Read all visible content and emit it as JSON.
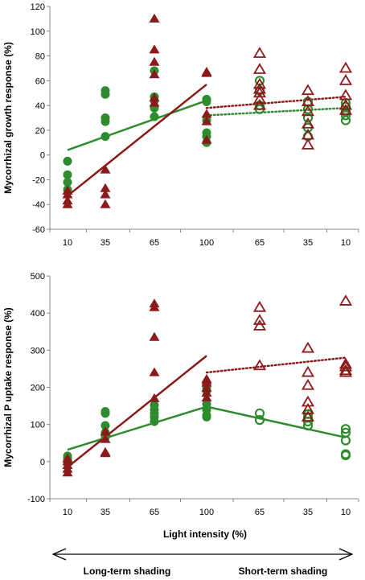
{
  "colors": {
    "green": "#2e8b2e",
    "red": "#8b1a1a"
  },
  "xlabel": "Light intensity (%)",
  "x_categories": [
    "10",
    "35",
    "65",
    "100",
    "65",
    "35",
    "10"
  ],
  "arrows": {
    "left_label": "Long-term shading",
    "right_label": "Short-term shading"
  },
  "chart_data": [
    {
      "type": "scatter",
      "ylabel": "Mycorrhizal growth response (%)",
      "ylim": [
        -60,
        120
      ],
      "yticks": [
        -60,
        -40,
        -20,
        0,
        20,
        40,
        60,
        80,
        100,
        120
      ],
      "categories": [
        "10",
        "35",
        "65",
        "100",
        "65",
        "35",
        "10"
      ],
      "series": [
        {
          "name": "",
          "color": "green",
          "marker": "circle",
          "filled": true,
          "regime": "long-term",
          "points": [
            [
              1,
              -5
            ],
            [
              1,
              -16
            ],
            [
              1,
              -22
            ],
            [
              1,
              -28
            ],
            [
              2,
              52
            ],
            [
              2,
              49
            ],
            [
              2,
              30
            ],
            [
              2,
              27
            ],
            [
              2,
              15
            ],
            [
              3,
              68
            ],
            [
              3,
              47
            ],
            [
              3,
              44
            ],
            [
              3,
              38
            ],
            [
              3,
              31
            ],
            [
              4,
              45
            ],
            [
              4,
              43
            ],
            [
              4,
              28
            ],
            [
              4,
              18
            ],
            [
              4,
              15
            ],
            [
              4,
              10
            ]
          ]
        },
        {
          "name": "",
          "color": "red",
          "marker": "triangle",
          "filled": true,
          "regime": "long-term",
          "points": [
            [
              1,
              -29
            ],
            [
              1,
              -32
            ],
            [
              1,
              -37
            ],
            [
              1,
              -40
            ],
            [
              2,
              -12
            ],
            [
              2,
              -27
            ],
            [
              2,
              -32
            ],
            [
              2,
              -40
            ],
            [
              3,
              110
            ],
            [
              3,
              85
            ],
            [
              3,
              75
            ],
            [
              3,
              65
            ],
            [
              3,
              46
            ],
            [
              3,
              42
            ],
            [
              4,
              67
            ],
            [
              4,
              66
            ],
            [
              4,
              33
            ],
            [
              4,
              27
            ],
            [
              4,
              12
            ]
          ]
        },
        {
          "name": "",
          "color": "green",
          "marker": "circle",
          "filled": false,
          "regime": "short-term",
          "points": [
            [
              5,
              60
            ],
            [
              5,
              52
            ],
            [
              5,
              40
            ],
            [
              5,
              37
            ],
            [
              6,
              43
            ],
            [
              6,
              37
            ],
            [
              6,
              30
            ],
            [
              6,
              22
            ],
            [
              6,
              15
            ],
            [
              7,
              42
            ],
            [
              7,
              39
            ],
            [
              7,
              35
            ],
            [
              7,
              32
            ],
            [
              7,
              28
            ]
          ]
        },
        {
          "name": "",
          "color": "red",
          "marker": "triangle",
          "filled": false,
          "regime": "short-term",
          "points": [
            [
              5,
              82
            ],
            [
              5,
              69
            ],
            [
              5,
              57
            ],
            [
              5,
              53
            ],
            [
              5,
              50
            ],
            [
              5,
              45
            ],
            [
              5,
              40
            ],
            [
              6,
              52
            ],
            [
              6,
              43
            ],
            [
              6,
              35
            ],
            [
              6,
              25
            ],
            [
              6,
              16
            ],
            [
              6,
              8
            ],
            [
              7,
              70
            ],
            [
              7,
              60
            ],
            [
              7,
              48
            ],
            [
              7,
              40
            ],
            [
              7,
              36
            ]
          ]
        }
      ],
      "trend_lines": [
        {
          "color": "green",
          "style": "solid",
          "from": [
            1,
            4
          ],
          "to": [
            4,
            44
          ]
        },
        {
          "color": "red",
          "style": "solid",
          "from": [
            1,
            -33
          ],
          "to": [
            4,
            57
          ]
        },
        {
          "color": "green",
          "style": "dotted",
          "from": [
            4,
            32
          ],
          "to": [
            7,
            38
          ]
        },
        {
          "color": "red",
          "style": "dotted",
          "from": [
            4,
            38
          ],
          "to": [
            7,
            47
          ]
        }
      ]
    },
    {
      "type": "scatter",
      "ylabel": "Mycorrhizal P uptake response (%)",
      "ylim": [
        -100,
        500
      ],
      "yticks": [
        -100,
        0,
        100,
        200,
        300,
        400,
        500
      ],
      "categories": [
        "10",
        "35",
        "65",
        "100",
        "65",
        "35",
        "10"
      ],
      "series": [
        {
          "name": "",
          "color": "green",
          "marker": "circle",
          "filled": true,
          "regime": "long-term",
          "points": [
            [
              1,
              15
            ],
            [
              1,
              8
            ],
            [
              1,
              2
            ],
            [
              1,
              -5
            ],
            [
              2,
              135
            ],
            [
              2,
              130
            ],
            [
              2,
              97
            ],
            [
              2,
              78
            ],
            [
              2,
              65
            ],
            [
              3,
              152
            ],
            [
              3,
              140
            ],
            [
              3,
              130
            ],
            [
              3,
              120
            ],
            [
              3,
              108
            ],
            [
              4,
              200
            ],
            [
              4,
              190
            ],
            [
              4,
              155
            ],
            [
              4,
              140
            ],
            [
              4,
              125
            ],
            [
              4,
              120
            ]
          ]
        },
        {
          "name": "",
          "color": "red",
          "marker": "triangle",
          "filled": true,
          "regime": "long-term",
          "points": [
            [
              1,
              8
            ],
            [
              1,
              0
            ],
            [
              1,
              -10
            ],
            [
              1,
              -20
            ],
            [
              1,
              -30
            ],
            [
              2,
              80
            ],
            [
              2,
              60
            ],
            [
              2,
              25
            ],
            [
              2,
              22
            ],
            [
              3,
              425
            ],
            [
              3,
              415
            ],
            [
              3,
              335
            ],
            [
              3,
              240
            ],
            [
              3,
              170
            ],
            [
              4,
              222
            ],
            [
              4,
              218
            ],
            [
              4,
              212
            ],
            [
              4,
              198
            ],
            [
              4,
              185
            ],
            [
              4,
              172
            ]
          ]
        },
        {
          "name": "",
          "color": "green",
          "marker": "circle",
          "filled": false,
          "regime": "short-term",
          "points": [
            [
              5,
              130
            ],
            [
              5,
              112
            ],
            [
              6,
              128
            ],
            [
              6,
              118
            ],
            [
              6,
              108
            ],
            [
              6,
              97
            ],
            [
              7,
              88
            ],
            [
              7,
              78
            ],
            [
              7,
              57
            ],
            [
              7,
              20
            ],
            [
              7,
              17
            ]
          ]
        },
        {
          "name": "",
          "color": "red",
          "marker": "triangle",
          "filled": false,
          "regime": "short-term",
          "points": [
            [
              5,
              415
            ],
            [
              5,
              380
            ],
            [
              5,
              365
            ],
            [
              5,
              258
            ],
            [
              6,
              305
            ],
            [
              6,
              240
            ],
            [
              6,
              205
            ],
            [
              6,
              160
            ],
            [
              6,
              140
            ],
            [
              6,
              120
            ],
            [
              7,
              432
            ],
            [
              7,
              262
            ],
            [
              7,
              255
            ],
            [
              7,
              245
            ],
            [
              7,
              240
            ]
          ]
        }
      ],
      "trend_lines": [
        {
          "color": "green",
          "style": "solid",
          "from": [
            1,
            32
          ],
          "to": [
            4,
            148
          ]
        },
        {
          "color": "red",
          "style": "solid",
          "from": [
            1,
            -15
          ],
          "to": [
            4,
            285
          ]
        },
        {
          "color": "green",
          "style": "solid",
          "from": [
            4,
            148
          ],
          "to": [
            7,
            65
          ]
        },
        {
          "color": "red",
          "style": "dotted",
          "from": [
            4,
            240
          ],
          "to": [
            7,
            280
          ]
        }
      ]
    }
  ]
}
